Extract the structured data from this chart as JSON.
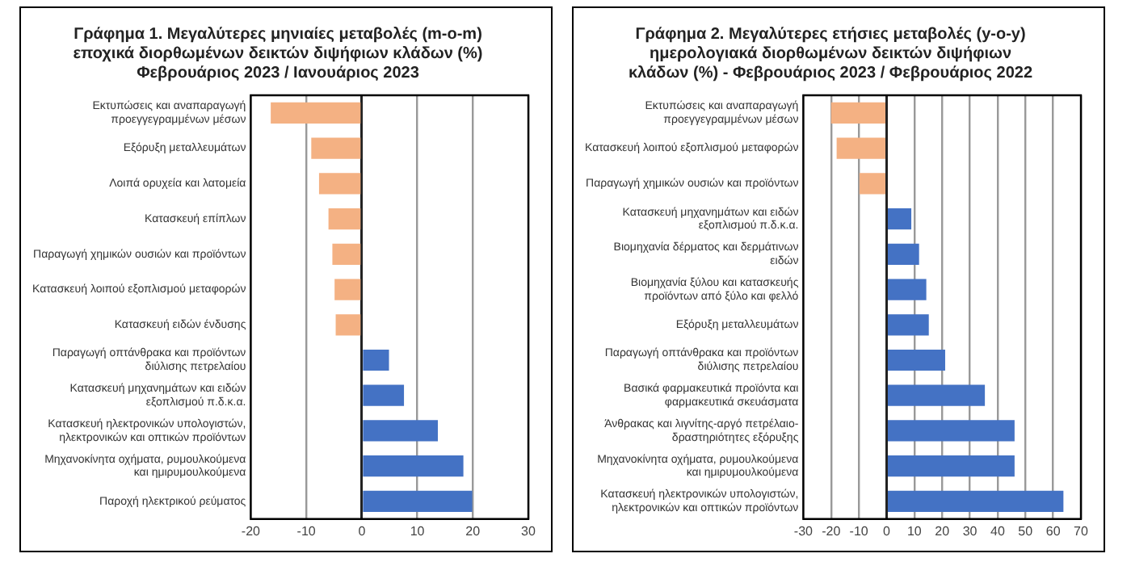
{
  "chart_data": [
    {
      "type": "bar",
      "orientation": "horizontal",
      "title": "Γράφημα 1. Μεγαλύτερες μηνιαίες μεταβολές (m-o-m)\nεποχικά διορθωμένων δεικτών διψήφιων κλάδων (%)\nΦεβρουάριος 2023 / Ιανουάριος 2023",
      "categories": [
        "Εκτυπώσεις και αναπαραγωγή\nπροεγγεγραμμένων μέσων",
        "Εξόρυξη μεταλλευμάτων",
        "Λοιπά ορυχεία και λατομεία",
        "Κατασκευή επίπλων",
        "Παραγωγή χημικών ουσιών και προϊόντων",
        "Κατασκευή λοιπού εξοπλισμού μεταφορών",
        "Κατασκευή ειδών ένδυσης",
        "Παραγωγή οπτάνθρακα και προϊόντων\nδιύλισης πετρελαίου",
        "Κατασκευή μηχανημάτων και ειδών\nεξοπλισμού π.δ.κ.α.",
        "Κατασκευή ηλεκτρονικών υπολογιστών,\nηλεκτρονικών και οπτικών προϊόντων",
        "Μηχανοκίνητα οχήματα, ρυμουλκούμενα\nκαι ημιρυμουλκούμενα",
        "Παροχή ηλεκτρικού ρεύματος"
      ],
      "values": [
        -16.4,
        -9.1,
        -7.7,
        -6.0,
        -5.3,
        -4.9,
        -4.7,
        4.9,
        7.6,
        13.7,
        18.3,
        19.9
      ],
      "colors": [
        "#f4b183",
        "#f4b183",
        "#f4b183",
        "#f4b183",
        "#f4b183",
        "#f4b183",
        "#f4b183",
        "#4472c4",
        "#4472c4",
        "#4472c4",
        "#4472c4",
        "#4472c4"
      ],
      "xlim": [
        -20,
        30
      ],
      "xticks": [
        -20,
        -10,
        0,
        10,
        20,
        30
      ],
      "grid": "x"
    },
    {
      "type": "bar",
      "orientation": "horizontal",
      "title": "Γράφημα 2. Μεγαλύτερες ετήσιες μεταβολές (y-o-y)\nημερολογιακά διορθωμένων δεικτών διψήφιων\nκλάδων (%) - Φεβρουάριος 2023 / Φεβρουάριος 2022",
      "categories": [
        "Εκτυπώσεις και αναπαραγωγή\nπροεγγεγραμμένων μέσων",
        "Κατασκευή λοιπού εξοπλισμού μεταφορών",
        "Παραγωγή χημικών ουσιών και προϊόντων",
        "Κατασκευή μηχανημάτων και ειδών\nεξοπλισμού π.δ.κ.α.",
        "Βιομηχανία δέρματος και δερμάτινων\nειδών",
        "Βιομηχανία ξύλου και κατασκευής\nπροϊόντων από ξύλο και φελλό",
        "Εξόρυξη μεταλλευμάτων",
        "Παραγωγή οπτάνθρακα και προϊόντων\nδιύλισης πετρελαίου",
        "Βασικά φαρμακευτικά προϊόντα και\nφαρμακευτικά σκευάσματα",
        "Άνθρακας και λιγνίτης-αργό πετρέλαιο-\nδραστηριότητες εξόρυξης",
        "Μηχανοκίνητα οχήματα, ρυμουλκούμενα\nκαι ημιρυμουλκούμενα",
        "Κατασκευή ηλεκτρονικών υπολογιστών,\nηλεκτρονικών και οπτικών προϊόντων"
      ],
      "values": [
        -20.0,
        -18.0,
        -9.8,
        8.9,
        11.7,
        14.3,
        15.2,
        21.1,
        35.4,
        46.1,
        46.1,
        63.7
      ],
      "colors": [
        "#f4b183",
        "#f4b183",
        "#f4b183",
        "#4472c4",
        "#4472c4",
        "#4472c4",
        "#4472c4",
        "#4472c4",
        "#4472c4",
        "#4472c4",
        "#4472c4",
        "#4472c4"
      ],
      "xlim": [
        -30,
        70
      ],
      "xticks": [
        -30,
        -20,
        -10,
        0,
        10,
        20,
        30,
        40,
        50,
        60,
        70
      ],
      "grid": "x"
    }
  ]
}
